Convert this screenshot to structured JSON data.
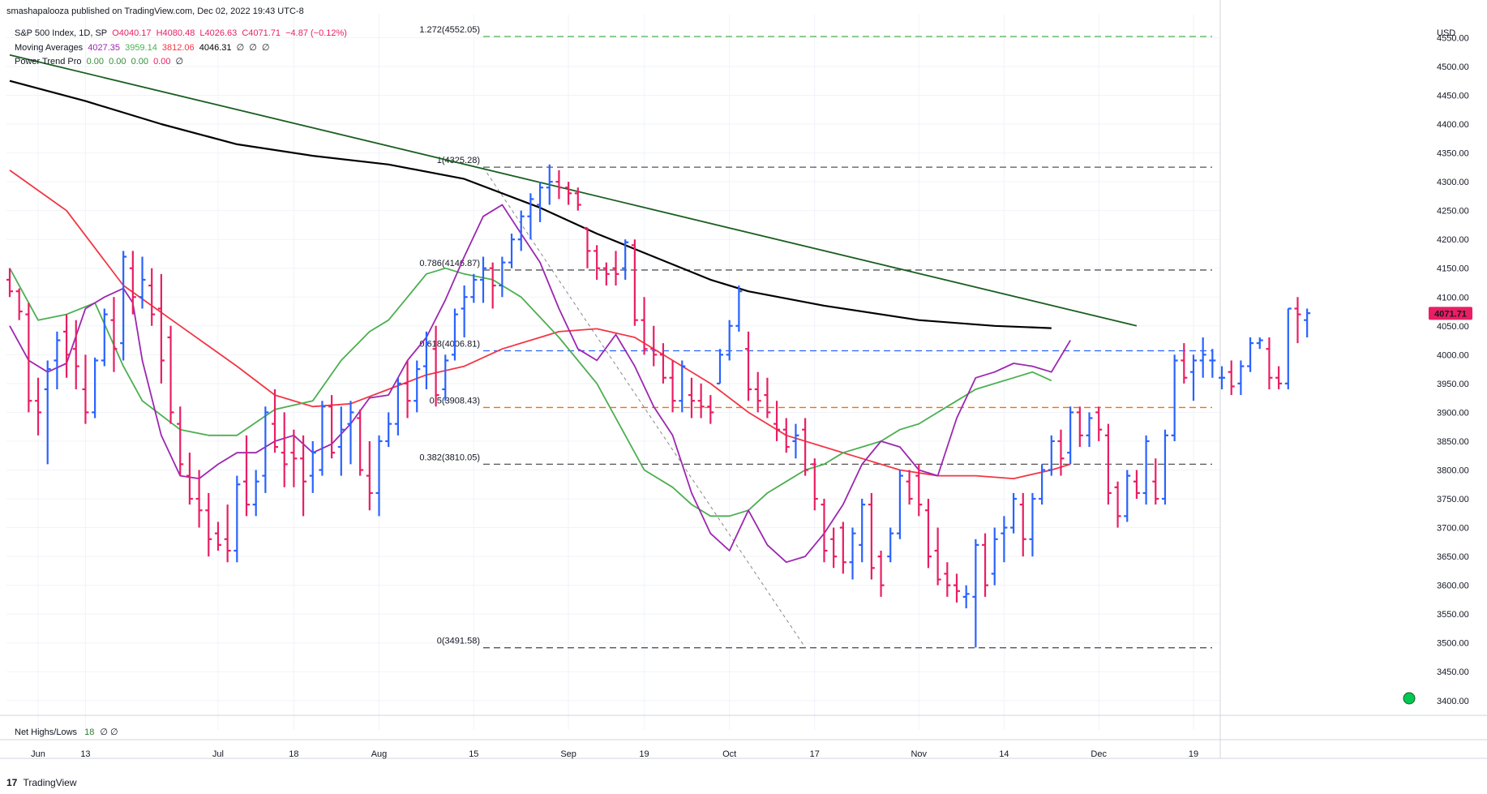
{
  "header": {
    "published": "smashapalooza published on TradingView.com, Dec 02, 2022 19:43 UTC-8"
  },
  "legend": {
    "symbol": "S&P 500 Index, 1D, SP",
    "open": "O4040.17",
    "high": "H4080.48",
    "low": "L4026.63",
    "close": "C4071.71",
    "change": "−4.87 (−0.12%)",
    "ma_label": "Moving Averages",
    "ma_values": [
      "4027.35",
      "3959.14",
      "3812.06",
      "4046.31",
      "∅",
      "∅",
      "∅"
    ],
    "ptp_label": "Power Trend Pro",
    "ptp_values": [
      "0.00",
      "0.00",
      "0.00",
      "0.00",
      "∅"
    ]
  },
  "net": {
    "label": "Net Highs/Lows",
    "value": "18",
    "extra": "∅ ∅"
  },
  "footer": {
    "brand": "TradingView"
  },
  "colors": {
    "up": "#2962ff",
    "down": "#e91e63",
    "ma_purple": "#9c27b0",
    "ma_green": "#4caf50",
    "ma_red": "#f23645",
    "ma_black": "#000000",
    "trend_line": "#1b5e20",
    "fib_gray": "#555555",
    "fib_blue": "#2962ff",
    "fib_orange": "#ff6d00",
    "fib_green": "#4caf50",
    "price_label_bg": "#e91e63"
  },
  "chart_data": {
    "type": "ohlc",
    "currency": "USD",
    "last_price": "4071.71",
    "ylim": [
      3380,
      4590
    ],
    "yticks": [
      3400,
      3450,
      3500,
      3550,
      3600,
      3650,
      3700,
      3750,
      3800,
      3850,
      3900,
      3950,
      4000,
      4050,
      4100,
      4150,
      4200,
      4250,
      4300,
      4350,
      4400,
      4450,
      4500,
      4550
    ],
    "xticks": [
      {
        "label": "Jun",
        "bar": 3
      },
      {
        "label": "13",
        "bar": 8
      },
      {
        "label": "Jul",
        "bar": 22
      },
      {
        "label": "18",
        "bar": 30
      },
      {
        "label": "Aug",
        "bar": 39
      },
      {
        "label": "15",
        "bar": 49
      },
      {
        "label": "Sep",
        "bar": 59
      },
      {
        "label": "19",
        "bar": 67
      },
      {
        "label": "Oct",
        "bar": 76
      },
      {
        "label": "17",
        "bar": 85
      },
      {
        "label": "Nov",
        "bar": 96
      },
      {
        "label": "14",
        "bar": 105
      },
      {
        "label": "Dec",
        "bar": 115
      },
      {
        "label": "19",
        "bar": 125
      }
    ],
    "fib_levels": [
      {
        "label": "1.272(4552.05)",
        "value": 4552.05,
        "color": "#4caf50"
      },
      {
        "label": "1(4325.28)",
        "value": 4325.28,
        "color": "#555555"
      },
      {
        "label": "0.786(4146.87)",
        "value": 4146.87,
        "color": "#555555"
      },
      {
        "label": "0.618(4006.81)",
        "value": 4006.81,
        "color": "#2962ff"
      },
      {
        "label": "0.5(3908.43)",
        "value": 3908.43,
        "color": "#ff6d00"
      },
      {
        "label": "0.382(3810.05)",
        "value": 3810.05,
        "color": "#555555"
      },
      {
        "label": "0(3491.58)",
        "value": 3491.58,
        "color": "#555555"
      }
    ],
    "bars": [
      [
        4130,
        4150,
        4100,
        4110
      ],
      [
        4110,
        4115,
        4060,
        4075
      ],
      [
        4070,
        4090,
        3900,
        3920
      ],
      [
        3920,
        3960,
        3860,
        3900
      ],
      [
        3940,
        3990,
        3810,
        3975
      ],
      [
        3990,
        4040,
        3940,
        4025
      ],
      [
        4040,
        4070,
        3960,
        4000
      ],
      [
        4010,
        4060,
        3940,
        3980
      ],
      [
        3940,
        4000,
        3880,
        3900
      ],
      [
        3900,
        3995,
        3890,
        3990
      ],
      [
        3990,
        4080,
        3980,
        4070
      ],
      [
        4060,
        4100,
        3970,
        4010
      ],
      [
        4020,
        4180,
        3990,
        4170
      ],
      [
        4150,
        4180,
        4070,
        4100
      ],
      [
        4100,
        4170,
        4080,
        4130
      ],
      [
        4120,
        4150,
        4050,
        4070
      ],
      [
        4080,
        4140,
        3950,
        3990
      ],
      [
        4030,
        4050,
        3880,
        3900
      ],
      [
        3880,
        3910,
        3790,
        3810
      ],
      [
        3790,
        3830,
        3740,
        3750
      ],
      [
        3750,
        3800,
        3700,
        3730
      ],
      [
        3730,
        3760,
        3650,
        3680
      ],
      [
        3690,
        3710,
        3660,
        3670
      ],
      [
        3680,
        3740,
        3640,
        3660
      ],
      [
        3660,
        3790,
        3640,
        3775
      ],
      [
        3780,
        3860,
        3720,
        3740
      ],
      [
        3740,
        3800,
        3720,
        3780
      ],
      [
        3790,
        3910,
        3760,
        3900
      ],
      [
        3880,
        3940,
        3830,
        3840
      ],
      [
        3830,
        3900,
        3770,
        3810
      ],
      [
        3830,
        3870,
        3770,
        3820
      ],
      [
        3820,
        3860,
        3720,
        3780
      ],
      [
        3790,
        3850,
        3760,
        3830
      ],
      [
        3800,
        3920,
        3790,
        3910
      ],
      [
        3910,
        3930,
        3820,
        3830
      ],
      [
        3840,
        3910,
        3790,
        3870
      ],
      [
        3880,
        3920,
        3810,
        3900
      ],
      [
        3890,
        3905,
        3790,
        3800
      ],
      [
        3790,
        3850,
        3730,
        3760
      ],
      [
        3760,
        3860,
        3720,
        3850
      ],
      [
        3850,
        3900,
        3840,
        3880
      ],
      [
        3880,
        3960,
        3860,
        3950
      ],
      [
        3950,
        3990,
        3890,
        3920
      ],
      [
        3920,
        3990,
        3900,
        3975
      ],
      [
        3980,
        4040,
        3940,
        4020
      ],
      [
        4010,
        4050,
        3910,
        3930
      ],
      [
        3940,
        4000,
        3920,
        3990
      ],
      [
        4000,
        4080,
        3990,
        4070
      ],
      [
        4080,
        4120,
        4030,
        4100
      ],
      [
        4100,
        4140,
        4090,
        4130
      ],
      [
        4130,
        4170,
        4090,
        4150
      ],
      [
        4150,
        4160,
        4080,
        4120
      ],
      [
        4120,
        4170,
        4100,
        4160
      ],
      [
        4160,
        4210,
        4150,
        4200
      ],
      [
        4200,
        4250,
        4180,
        4240
      ],
      [
        4240,
        4280,
        4200,
        4270
      ],
      [
        4260,
        4300,
        4230,
        4290
      ],
      [
        4290,
        4330,
        4260,
        4300
      ],
      [
        4300,
        4320,
        4270,
        4290
      ],
      [
        4290,
        4300,
        4260,
        4280
      ],
      [
        4280,
        4290,
        4250,
        4260
      ],
      [
        4220,
        4220,
        4150,
        4180
      ],
      [
        4180,
        4190,
        4130,
        4150
      ],
      [
        4150,
        4160,
        4120,
        4140
      ],
      [
        4150,
        4180,
        4120,
        4140
      ],
      [
        4150,
        4200,
        4130,
        4195
      ],
      [
        4190,
        4200,
        4050,
        4060
      ],
      [
        4060,
        4100,
        4000,
        4010
      ],
      [
        4010,
        4050,
        3980,
        4000
      ],
      [
        4000,
        4020,
        3950,
        3960
      ],
      [
        3960,
        3990,
        3900,
        3920
      ],
      [
        3920,
        3990,
        3900,
        3980
      ],
      [
        3930,
        3960,
        3890,
        3920
      ],
      [
        3920,
        3950,
        3890,
        3910
      ],
      [
        3910,
        3930,
        3880,
        3900
      ],
      [
        3950,
        4010,
        3950,
        4000
      ],
      [
        4000,
        4060,
        3990,
        4050
      ],
      [
        4050,
        4120,
        4040,
        4110
      ],
      [
        4010,
        4040,
        3920,
        3940
      ],
      [
        3940,
        3970,
        3900,
        3920
      ],
      [
        3930,
        3960,
        3890,
        3900
      ],
      [
        3880,
        3920,
        3850,
        3870
      ],
      [
        3870,
        3890,
        3830,
        3840
      ],
      [
        3850,
        3880,
        3820,
        3860
      ],
      [
        3870,
        3890,
        3790,
        3800
      ],
      [
        3810,
        3820,
        3730,
        3750
      ],
      [
        3740,
        3750,
        3640,
        3660
      ],
      [
        3680,
        3700,
        3630,
        3650
      ],
      [
        3700,
        3710,
        3620,
        3640
      ],
      [
        3640,
        3700,
        3610,
        3690
      ],
      [
        3670,
        3750,
        3640,
        3740
      ],
      [
        3740,
        3760,
        3610,
        3630
      ],
      [
        3650,
        3660,
        3580,
        3600
      ],
      [
        3650,
        3700,
        3640,
        3690
      ],
      [
        3690,
        3800,
        3680,
        3790
      ],
      [
        3780,
        3800,
        3740,
        3750
      ],
      [
        3790,
        3810,
        3720,
        3740
      ],
      [
        3730,
        3750,
        3630,
        3650
      ],
      [
        3660,
        3700,
        3600,
        3610
      ],
      [
        3620,
        3640,
        3580,
        3600
      ],
      [
        3600,
        3620,
        3570,
        3590
      ],
      [
        3580,
        3600,
        3560,
        3585
      ],
      [
        3580,
        3680,
        3492,
        3670
      ],
      [
        3670,
        3690,
        3580,
        3600
      ],
      [
        3620,
        3700,
        3600,
        3680
      ],
      [
        3690,
        3720,
        3640,
        3700
      ],
      [
        3700,
        3760,
        3690,
        3750
      ],
      [
        3740,
        3760,
        3650,
        3680
      ],
      [
        3680,
        3760,
        3650,
        3750
      ],
      [
        3750,
        3810,
        3740,
        3800
      ],
      [
        3800,
        3860,
        3790,
        3850
      ],
      [
        3850,
        3870,
        3790,
        3820
      ],
      [
        3830,
        3910,
        3810,
        3900
      ],
      [
        3900,
        3910,
        3840,
        3860
      ],
      [
        3860,
        3900,
        3840,
        3890
      ],
      [
        3900,
        3910,
        3850,
        3870
      ],
      [
        3860,
        3880,
        3740,
        3760
      ],
      [
        3770,
        3780,
        3700,
        3720
      ],
      [
        3720,
        3800,
        3710,
        3790
      ],
      [
        3780,
        3800,
        3750,
        3760
      ],
      [
        3760,
        3860,
        3740,
        3850
      ],
      [
        3780,
        3820,
        3740,
        3750
      ],
      [
        3750,
        3870,
        3740,
        3860
      ],
      [
        3860,
        4000,
        3850,
        3990
      ],
      [
        3990,
        4020,
        3950,
        3960
      ],
      [
        3970,
        4000,
        3920,
        3990
      ],
      [
        3990,
        4030,
        3960,
        4000
      ],
      [
        3990,
        4010,
        3960,
        3990
      ],
      [
        3960,
        3980,
        3940,
        3960
      ],
      [
        3970,
        3990,
        3930,
        3945
      ],
      [
        3950,
        3990,
        3930,
        3980
      ],
      [
        3980,
        4030,
        3970,
        4020
      ],
      [
        4020,
        4030,
        4010,
        4025
      ],
      [
        4010,
        4030,
        3940,
        3960
      ],
      [
        3960,
        3980,
        3940,
        3950
      ],
      [
        3950,
        4080,
        3940,
        4080
      ],
      [
        4080,
        4100,
        4020,
        4070
      ],
      [
        4060,
        4080,
        4030,
        4072
      ]
    ],
    "ma_purple": [
      [
        0,
        4050
      ],
      [
        2,
        3990
      ],
      [
        4,
        3970
      ],
      [
        6,
        3985
      ],
      [
        8,
        4080
      ],
      [
        10,
        4100
      ],
      [
        12,
        4115
      ],
      [
        13,
        4090
      ],
      [
        14,
        3990
      ],
      [
        16,
        3860
      ],
      [
        18,
        3790
      ],
      [
        20,
        3785
      ],
      [
        22,
        3810
      ],
      [
        24,
        3830
      ],
      [
        26,
        3830
      ],
      [
        28,
        3850
      ],
      [
        30,
        3860
      ],
      [
        32,
        3830
      ],
      [
        34,
        3845
      ],
      [
        36,
        3880
      ],
      [
        38,
        3925
      ],
      [
        40,
        3930
      ],
      [
        42,
        3990
      ],
      [
        44,
        4030
      ],
      [
        46,
        4095
      ],
      [
        48,
        4170
      ],
      [
        50,
        4240
      ],
      [
        52,
        4260
      ],
      [
        54,
        4210
      ],
      [
        56,
        4160
      ],
      [
        58,
        4080
      ],
      [
        60,
        4010
      ],
      [
        62,
        3990
      ],
      [
        64,
        4035
      ],
      [
        66,
        3980
      ],
      [
        68,
        3910
      ],
      [
        70,
        3860
      ],
      [
        72,
        3760
      ],
      [
        74,
        3690
      ],
      [
        76,
        3660
      ],
      [
        78,
        3730
      ],
      [
        80,
        3670
      ],
      [
        82,
        3640
      ],
      [
        84,
        3650
      ],
      [
        86,
        3690
      ],
      [
        88,
        3740
      ],
      [
        90,
        3810
      ],
      [
        92,
        3850
      ],
      [
        94,
        3840
      ],
      [
        96,
        3800
      ],
      [
        98,
        3790
      ],
      [
        100,
        3890
      ],
      [
        102,
        3960
      ],
      [
        104,
        3970
      ],
      [
        106,
        3985
      ],
      [
        108,
        3980
      ],
      [
        110,
        3970
      ],
      [
        112,
        4025
      ]
    ],
    "ma_green": [
      [
        0,
        4150
      ],
      [
        3,
        4060
      ],
      [
        6,
        4070
      ],
      [
        9,
        4090
      ],
      [
        12,
        3980
      ],
      [
        14,
        3920
      ],
      [
        18,
        3870
      ],
      [
        21,
        3860
      ],
      [
        24,
        3860
      ],
      [
        28,
        3905
      ],
      [
        32,
        3920
      ],
      [
        35,
        3990
      ],
      [
        38,
        4040
      ],
      [
        40,
        4060
      ],
      [
        42,
        4100
      ],
      [
        44,
        4140
      ],
      [
        46,
        4150
      ],
      [
        48,
        4140
      ],
      [
        51,
        4130
      ],
      [
        54,
        4100
      ],
      [
        58,
        4030
      ],
      [
        62,
        3950
      ],
      [
        65,
        3860
      ],
      [
        67,
        3800
      ],
      [
        70,
        3770
      ],
      [
        72,
        3740
      ],
      [
        74,
        3720
      ],
      [
        76,
        3720
      ],
      [
        78,
        3730
      ],
      [
        80,
        3760
      ],
      [
        82,
        3780
      ],
      [
        84,
        3800
      ],
      [
        86,
        3810
      ],
      [
        88,
        3830
      ],
      [
        90,
        3840
      ],
      [
        92,
        3850
      ],
      [
        94,
        3870
      ],
      [
        96,
        3880
      ],
      [
        98,
        3900
      ],
      [
        100,
        3920
      ],
      [
        102,
        3940
      ],
      [
        104,
        3950
      ],
      [
        106,
        3960
      ],
      [
        108,
        3970
      ],
      [
        110,
        3955
      ]
    ],
    "ma_red": [
      [
        0,
        4320
      ],
      [
        6,
        4250
      ],
      [
        12,
        4120
      ],
      [
        18,
        4050
      ],
      [
        24,
        3980
      ],
      [
        28,
        3930
      ],
      [
        32,
        3910
      ],
      [
        36,
        3915
      ],
      [
        40,
        3940
      ],
      [
        44,
        3965
      ],
      [
        48,
        3980
      ],
      [
        52,
        4010
      ],
      [
        56,
        4030
      ],
      [
        58,
        4040
      ],
      [
        62,
        4045
      ],
      [
        66,
        4030
      ],
      [
        70,
        3990
      ],
      [
        74,
        3950
      ],
      [
        78,
        3900
      ],
      [
        82,
        3860
      ],
      [
        86,
        3840
      ],
      [
        90,
        3820
      ],
      [
        94,
        3800
      ],
      [
        98,
        3790
      ],
      [
        102,
        3790
      ],
      [
        106,
        3785
      ],
      [
        110,
        3800
      ],
      [
        112,
        3810
      ]
    ],
    "ma_black": [
      [
        0,
        4475
      ],
      [
        8,
        4440
      ],
      [
        16,
        4400
      ],
      [
        24,
        4365
      ],
      [
        32,
        4345
      ],
      [
        40,
        4330
      ],
      [
        48,
        4305
      ],
      [
        56,
        4255
      ],
      [
        62,
        4210
      ],
      [
        68,
        4170
      ],
      [
        74,
        4130
      ],
      [
        78,
        4110
      ],
      [
        86,
        4085
      ],
      [
        96,
        4060
      ],
      [
        104,
        4050
      ],
      [
        110,
        4046
      ]
    ],
    "trend_line": {
      "from": [
        0,
        4520
      ],
      "to": [
        119,
        4050
      ]
    },
    "zigzag": {
      "from": [
        50,
        4325
      ],
      "to": [
        84,
        3492
      ]
    }
  }
}
